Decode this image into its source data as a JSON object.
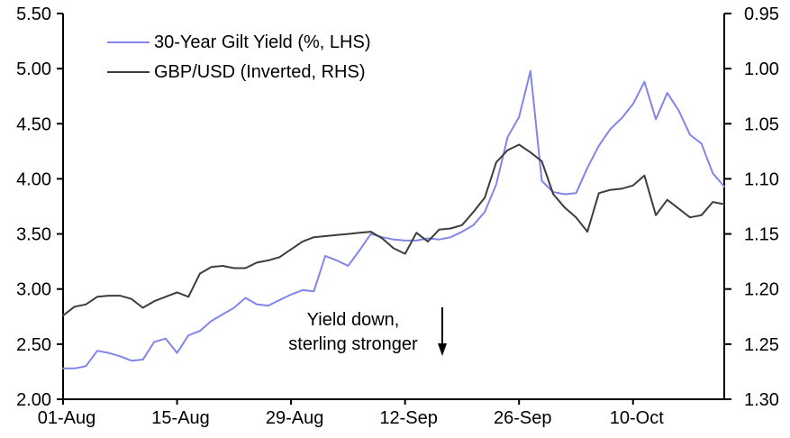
{
  "chart_data": {
    "type": "line",
    "title": "",
    "x": [
      "01-Aug",
      "02-Aug",
      "03-Aug",
      "04-Aug",
      "05-Aug",
      "08-Aug",
      "09-Aug",
      "10-Aug",
      "11-Aug",
      "12-Aug",
      "15-Aug",
      "16-Aug",
      "17-Aug",
      "18-Aug",
      "19-Aug",
      "22-Aug",
      "23-Aug",
      "24-Aug",
      "25-Aug",
      "26-Aug",
      "29-Aug",
      "30-Aug",
      "31-Aug",
      "01-Sep",
      "02-Sep",
      "05-Sep",
      "06-Sep",
      "07-Sep",
      "08-Sep",
      "09-Sep",
      "12-Sep",
      "13-Sep",
      "14-Sep",
      "15-Sep",
      "16-Sep",
      "19-Sep",
      "20-Sep",
      "21-Sep",
      "22-Sep",
      "23-Sep",
      "26-Sep",
      "27-Sep",
      "28-Sep",
      "29-Sep",
      "30-Sep",
      "03-Oct",
      "04-Oct",
      "05-Oct",
      "06-Oct",
      "07-Oct",
      "10-Oct",
      "11-Oct",
      "12-Oct",
      "13-Oct",
      "14-Oct",
      "17-Oct",
      "18-Oct",
      "19-Oct",
      "20-Oct"
    ],
    "series": [
      {
        "id": "gilt-yield-line",
        "name": "30-Year Gilt Yield (%, LHS)",
        "axis": "left",
        "color": "#8285ea",
        "values": [
          2.28,
          2.28,
          2.3,
          2.44,
          2.42,
          2.39,
          2.35,
          2.36,
          2.52,
          2.55,
          2.42,
          2.58,
          2.62,
          2.71,
          2.77,
          2.83,
          2.92,
          2.86,
          2.85,
          2.9,
          2.95,
          2.99,
          2.98,
          3.3,
          3.26,
          3.21,
          3.35,
          3.5,
          3.47,
          3.45,
          3.44,
          3.44,
          3.46,
          3.45,
          3.47,
          3.52,
          3.58,
          3.7,
          3.95,
          4.38,
          4.56,
          4.98,
          3.98,
          3.88,
          3.86,
          3.87,
          4.1,
          4.3,
          4.45,
          4.55,
          4.68,
          4.88,
          4.54,
          4.78,
          4.62,
          4.4,
          4.32,
          4.05,
          3.93
        ]
      },
      {
        "id": "gbp-usd-line",
        "name": "GBP/USD (Inverted, RHS)",
        "axis": "right",
        "color": "#3d3d3d",
        "values": [
          1.224,
          1.216,
          1.214,
          1.207,
          1.206,
          1.206,
          1.209,
          1.217,
          1.211,
          1.207,
          1.203,
          1.207,
          1.186,
          1.18,
          1.179,
          1.181,
          1.181,
          1.176,
          1.174,
          1.171,
          1.164,
          1.157,
          1.153,
          1.152,
          1.151,
          1.15,
          1.149,
          1.148,
          1.154,
          1.163,
          1.168,
          1.149,
          1.157,
          1.146,
          1.145,
          1.142,
          1.13,
          1.117,
          1.085,
          1.074,
          1.069,
          1.076,
          1.084,
          1.114,
          1.126,
          1.135,
          1.148,
          1.113,
          1.11,
          1.109,
          1.106,
          1.097,
          1.133,
          1.119,
          1.127,
          1.135,
          1.133,
          1.121,
          1.123
        ]
      }
    ],
    "left_axis": {
      "min": 2.0,
      "max": 5.5,
      "ticks": [
        "5.50",
        "5.00",
        "4.50",
        "4.00",
        "3.50",
        "3.00",
        "2.50",
        "2.00"
      ]
    },
    "right_axis": {
      "min": 0.95,
      "max": 1.3,
      "inverted": true,
      "ticks": [
        "0.95",
        "1.00",
        "1.05",
        "1.10",
        "1.15",
        "1.20",
        "1.25",
        "1.30"
      ]
    },
    "x_ticks": [
      "01-Aug",
      "15-Aug",
      "29-Aug",
      "12-Sep",
      "26-Sep",
      "10-Oct"
    ],
    "annotation": {
      "line1": "Yield down,",
      "line2": "sterling stronger",
      "arrow": "down"
    },
    "legend_position": "top-left",
    "grid": false,
    "axis_color": "#000000"
  }
}
